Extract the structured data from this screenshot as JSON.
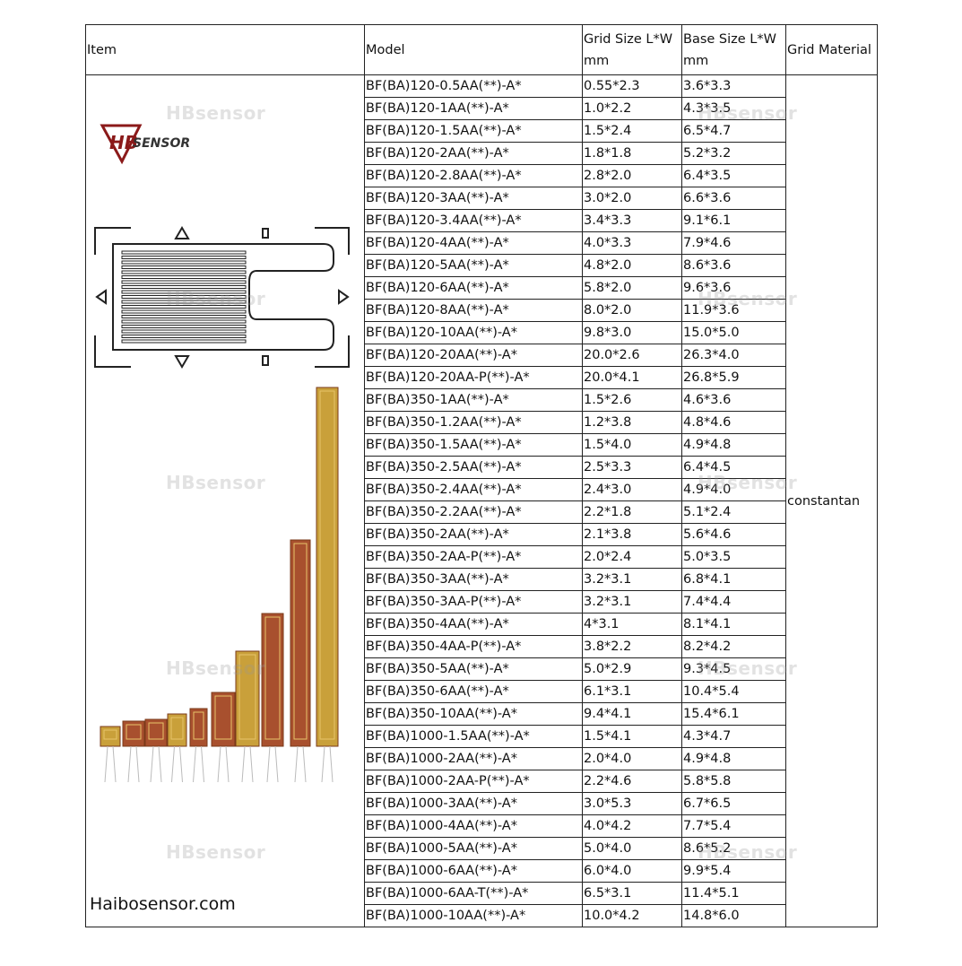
{
  "header": {
    "item": "Item",
    "model": "Model",
    "grid_size": "Grid Size L*W mm",
    "base_size": "Base Size L*W mm",
    "material": "Grid Material"
  },
  "logo": {
    "mark": "HB",
    "text": "SENSOR"
  },
  "watermark": "HBsensor",
  "website": "Haibosensor.com",
  "material": "constantan",
  "table": {
    "rows": [
      [
        "BF(BA)120-0.5AA(**)-A*",
        "0.55*2.3",
        "3.6*3.3"
      ],
      [
        "BF(BA)120-1AA(**)-A*",
        "1.0*2.2",
        "4.3*3.5"
      ],
      [
        "BF(BA)120-1.5AA(**)-A*",
        "1.5*2.4",
        "6.5*4.7"
      ],
      [
        "BF(BA)120-2AA(**)-A*",
        "1.8*1.8",
        "5.2*3.2"
      ],
      [
        "BF(BA)120-2.8AA(**)-A*",
        "2.8*2.0",
        "6.4*3.5"
      ],
      [
        "BF(BA)120-3AA(**)-A*",
        "3.0*2.0",
        "6.6*3.6"
      ],
      [
        "BF(BA)120-3.4AA(**)-A*",
        "3.4*3.3",
        "9.1*6.1"
      ],
      [
        "BF(BA)120-4AA(**)-A*",
        "4.0*3.3",
        "7.9*4.6"
      ],
      [
        "BF(BA)120-5AA(**)-A*",
        "4.8*2.0",
        "8.6*3.6"
      ],
      [
        "BF(BA)120-6AA(**)-A*",
        "5.8*2.0",
        "9.6*3.6"
      ],
      [
        "BF(BA)120-8AA(**)-A*",
        "8.0*2.0",
        "11.9*3.6"
      ],
      [
        "BF(BA)120-10AA(**)-A*",
        "9.8*3.0",
        "15.0*5.0"
      ],
      [
        "BF(BA)120-20AA(**)-A*",
        "20.0*2.6",
        "26.3*4.0"
      ],
      [
        "BF(BA)120-20AA-P(**)-A*",
        "20.0*4.1",
        "26.8*5.9"
      ],
      [
        "BF(BA)350-1AA(**)-A*",
        "1.5*2.6",
        "4.6*3.6"
      ],
      [
        "BF(BA)350-1.2AA(**)-A*",
        "1.2*3.8",
        "4.8*4.6"
      ],
      [
        "BF(BA)350-1.5AA(**)-A*",
        "1.5*4.0",
        "4.9*4.8"
      ],
      [
        "BF(BA)350-2.5AA(**)-A*",
        "2.5*3.3",
        "6.4*4.5"
      ],
      [
        "BF(BA)350-2.4AA(**)-A*",
        "2.4*3.0",
        "4.9*4.0"
      ],
      [
        "BF(BA)350-2.2AA(**)-A*",
        "2.2*1.8",
        "5.1*2.4"
      ],
      [
        "BF(BA)350-2AA(**)-A*",
        "2.1*3.8",
        "5.6*4.6"
      ],
      [
        "BF(BA)350-2AA-P(**)-A*",
        "2.0*2.4",
        "5.0*3.5"
      ],
      [
        "BF(BA)350-3AA(**)-A*",
        "3.2*3.1",
        "6.8*4.1"
      ],
      [
        "BF(BA)350-3AA-P(**)-A*",
        "3.2*3.1",
        "7.4*4.4"
      ],
      [
        "BF(BA)350-4AA(**)-A*",
        "4*3.1",
        "8.1*4.1"
      ],
      [
        "BF(BA)350-4AA-P(**)-A*",
        "3.8*2.2",
        "8.2*4.2"
      ],
      [
        "BF(BA)350-5AA(**)-A*",
        "5.0*2.9",
        "9.3*4.5"
      ],
      [
        "BF(BA)350-6AA(**)-A*",
        "6.1*3.1",
        "10.4*5.4"
      ],
      [
        "BF(BA)350-10AA(**)-A*",
        "9.4*4.1",
        "15.4*6.1"
      ],
      [
        "BF(BA)1000-1.5AA(**)-A*",
        "1.5*4.1",
        "4.3*4.7"
      ],
      [
        "BF(BA)1000-2AA(**)-A*",
        "2.0*4.0",
        "4.9*4.8"
      ],
      [
        "BF(BA)1000-2AA-P(**)-A*",
        "2.2*4.6",
        "5.8*5.8"
      ],
      [
        "BF(BA)1000-3AA(**)-A*",
        "3.0*5.3",
        "6.7*6.5"
      ],
      [
        "BF(BA)1000-4AA(**)-A*",
        "4.0*4.2",
        "7.7*5.4"
      ],
      [
        "BF(BA)1000-5AA(**)-A*",
        "5.0*4.0",
        "8.6*5.2"
      ],
      [
        "BF(BA)1000-6AA(**)-A*",
        "6.0*4.0",
        "9.9*5.4"
      ],
      [
        "BF(BA)1000-6AA-T(**)-A*",
        "6.5*3.1",
        "11.4*5.1"
      ],
      [
        "BF(BA)1000-10AA(**)-A*",
        "10.0*4.2",
        "14.8*6.0"
      ]
    ]
  }
}
